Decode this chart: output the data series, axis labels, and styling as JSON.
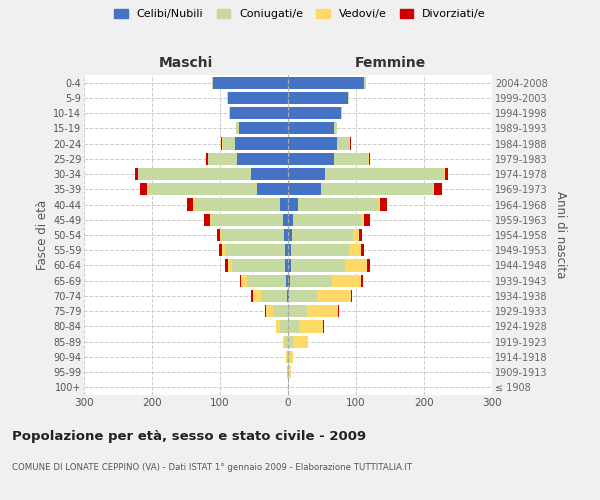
{
  "age_groups": [
    "100+",
    "95-99",
    "90-94",
    "85-89",
    "80-84",
    "75-79",
    "70-74",
    "65-69",
    "60-64",
    "55-59",
    "50-54",
    "45-49",
    "40-44",
    "35-39",
    "30-34",
    "25-29",
    "20-24",
    "15-19",
    "10-14",
    "5-9",
    "0-4"
  ],
  "birth_years": [
    "≤ 1908",
    "1909-1913",
    "1914-1918",
    "1919-1923",
    "1924-1928",
    "1929-1933",
    "1934-1938",
    "1939-1943",
    "1944-1948",
    "1949-1953",
    "1954-1958",
    "1959-1963",
    "1964-1968",
    "1969-1973",
    "1974-1978",
    "1979-1983",
    "1984-1988",
    "1989-1993",
    "1994-1998",
    "1999-2003",
    "2004-2008"
  ],
  "m_cel": [
    0,
    0,
    0,
    0,
    0,
    0,
    2,
    3,
    4,
    5,
    6,
    8,
    12,
    45,
    55,
    75,
    78,
    72,
    85,
    88,
    110
  ],
  "m_con": [
    0,
    1,
    2,
    5,
    12,
    22,
    38,
    58,
    78,
    88,
    92,
    105,
    125,
    160,
    165,
    42,
    18,
    4,
    2,
    2,
    2
  ],
  "m_ved": [
    0,
    0,
    1,
    3,
    6,
    10,
    12,
    8,
    6,
    4,
    2,
    2,
    2,
    2,
    1,
    1,
    1,
    0,
    0,
    0,
    0
  ],
  "m_div": [
    0,
    0,
    0,
    0,
    0,
    2,
    2,
    2,
    5,
    5,
    5,
    8,
    10,
    10,
    4,
    2,
    1,
    0,
    0,
    0,
    0
  ],
  "f_nub": [
    0,
    0,
    0,
    0,
    0,
    0,
    2,
    3,
    4,
    5,
    6,
    8,
    15,
    48,
    55,
    68,
    72,
    68,
    78,
    88,
    112
  ],
  "f_con": [
    0,
    2,
    3,
    8,
    16,
    28,
    42,
    62,
    80,
    84,
    90,
    100,
    118,
    165,
    175,
    50,
    18,
    4,
    2,
    2,
    2
  ],
  "f_ved": [
    0,
    2,
    5,
    22,
    35,
    45,
    48,
    42,
    32,
    18,
    8,
    4,
    3,
    2,
    1,
    1,
    1,
    0,
    0,
    0,
    0
  ],
  "f_div": [
    0,
    0,
    0,
    0,
    2,
    2,
    2,
    3,
    5,
    5,
    5,
    8,
    10,
    12,
    4,
    2,
    1,
    0,
    0,
    0,
    0
  ],
  "colors": {
    "celibi": "#4472c4",
    "coniugati": "#c5d9a0",
    "vedovi": "#ffd966",
    "divorziati": "#cc0000"
  },
  "xlim": 300,
  "title": "Popolazione per età, sesso e stato civile - 2009",
  "subtitle": "COMUNE DI LONATE CEPPINO (VA) - Dati ISTAT 1° gennaio 2009 - Elaborazione TUTTITALIA.IT",
  "ylabel_left": "Fasce di età",
  "ylabel_right": "Anni di nascita",
  "legend_labels": [
    "Celibi/Nubili",
    "Coniugati/e",
    "Vedovi/e",
    "Divorziati/e"
  ],
  "bg_color": "#f0f0f0",
  "plot_bg": "#ffffff",
  "maschi_label": "Maschi",
  "femmine_label": "Femmine"
}
